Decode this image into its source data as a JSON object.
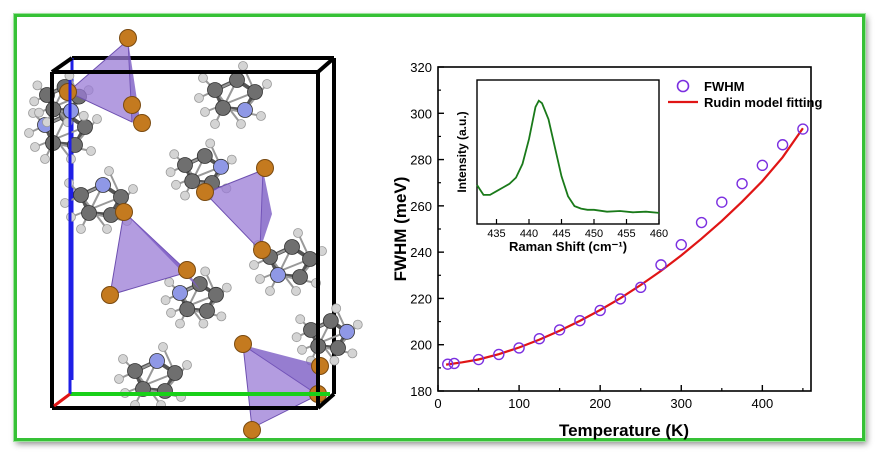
{
  "colors": {
    "frame": "#36c136",
    "fwhm_marker": "#7b2fe0",
    "fit_line": "#e01515",
    "inset_line": "#1a7a1a",
    "polyhedron": "#9a7bd6",
    "bromine": "#c47a1f",
    "carbon": "#6f6f6f",
    "nitrogen": "#8f98e6",
    "hydrogen": "#d4d4d4",
    "axis_a": "#1e1ee6",
    "axis_b": "#19d019",
    "axis_c": "#e01515"
  },
  "structure": {
    "description_icon": "crystal-unit-cell-icon"
  },
  "chart_data": [
    {
      "type": "scatter",
      "title": "",
      "xlabel": "Temperature (K)",
      "ylabel": "FWHM (meV)",
      "xlim": [
        0,
        460
      ],
      "ylim": [
        180,
        320
      ],
      "xticks": [
        0,
        100,
        200,
        300,
        400
      ],
      "yticks": [
        180,
        200,
        220,
        240,
        260,
        280,
        300,
        320
      ],
      "legend_position": "top-right",
      "grid": false,
      "series": [
        {
          "name": "FWHM",
          "kind": "scatter",
          "marker": "open-circle",
          "x": [
            12,
            20,
            50,
            75,
            100,
            125,
            150,
            175,
            200,
            225,
            250,
            275,
            300,
            325,
            350,
            375,
            400,
            425,
            450
          ],
          "y": [
            191.6,
            191.9,
            193.6,
            195.8,
            198.6,
            202.6,
            206.4,
            210.4,
            214.8,
            219.8,
            224.8,
            234.5,
            243.2,
            252.8,
            261.6,
            269.6,
            277.5,
            286.4,
            293.2
          ]
        },
        {
          "name": "Rudin model fitting",
          "kind": "line",
          "x": [
            10,
            30,
            50,
            75,
            100,
            125,
            150,
            175,
            200,
            225,
            250,
            275,
            300,
            325,
            350,
            375,
            400,
            425,
            450
          ],
          "y": [
            191.4,
            192.4,
            193.6,
            195.9,
            198.8,
            202.2,
            206.0,
            210.3,
            215.0,
            220.1,
            225.8,
            231.9,
            238.6,
            245.8,
            253.5,
            261.8,
            270.7,
            281.0,
            293.5
          ]
        }
      ]
    },
    {
      "type": "line",
      "title": "",
      "xlabel": "Raman Shift (cm⁻¹)",
      "ylabel": "Intensity (a.u.)",
      "xlim": [
        432,
        460
      ],
      "xticks": [
        435,
        440,
        445,
        450,
        455,
        460
      ],
      "yticks_labeled": false,
      "grid": false,
      "series": [
        {
          "name": "",
          "x": [
            432,
            433,
            434,
            435,
            436,
            437,
            438,
            439,
            440,
            441,
            441.5,
            442,
            443,
            444,
            445,
            446,
            447,
            448,
            449,
            450,
            452,
            454,
            456,
            458,
            460
          ],
          "y": [
            0.25,
            0.17,
            0.17,
            0.2,
            0.23,
            0.26,
            0.31,
            0.42,
            0.62,
            0.88,
            0.93,
            0.91,
            0.78,
            0.55,
            0.32,
            0.16,
            0.08,
            0.06,
            0.05,
            0.05,
            0.035,
            0.04,
            0.03,
            0.035,
            0.025
          ]
        }
      ]
    }
  ]
}
